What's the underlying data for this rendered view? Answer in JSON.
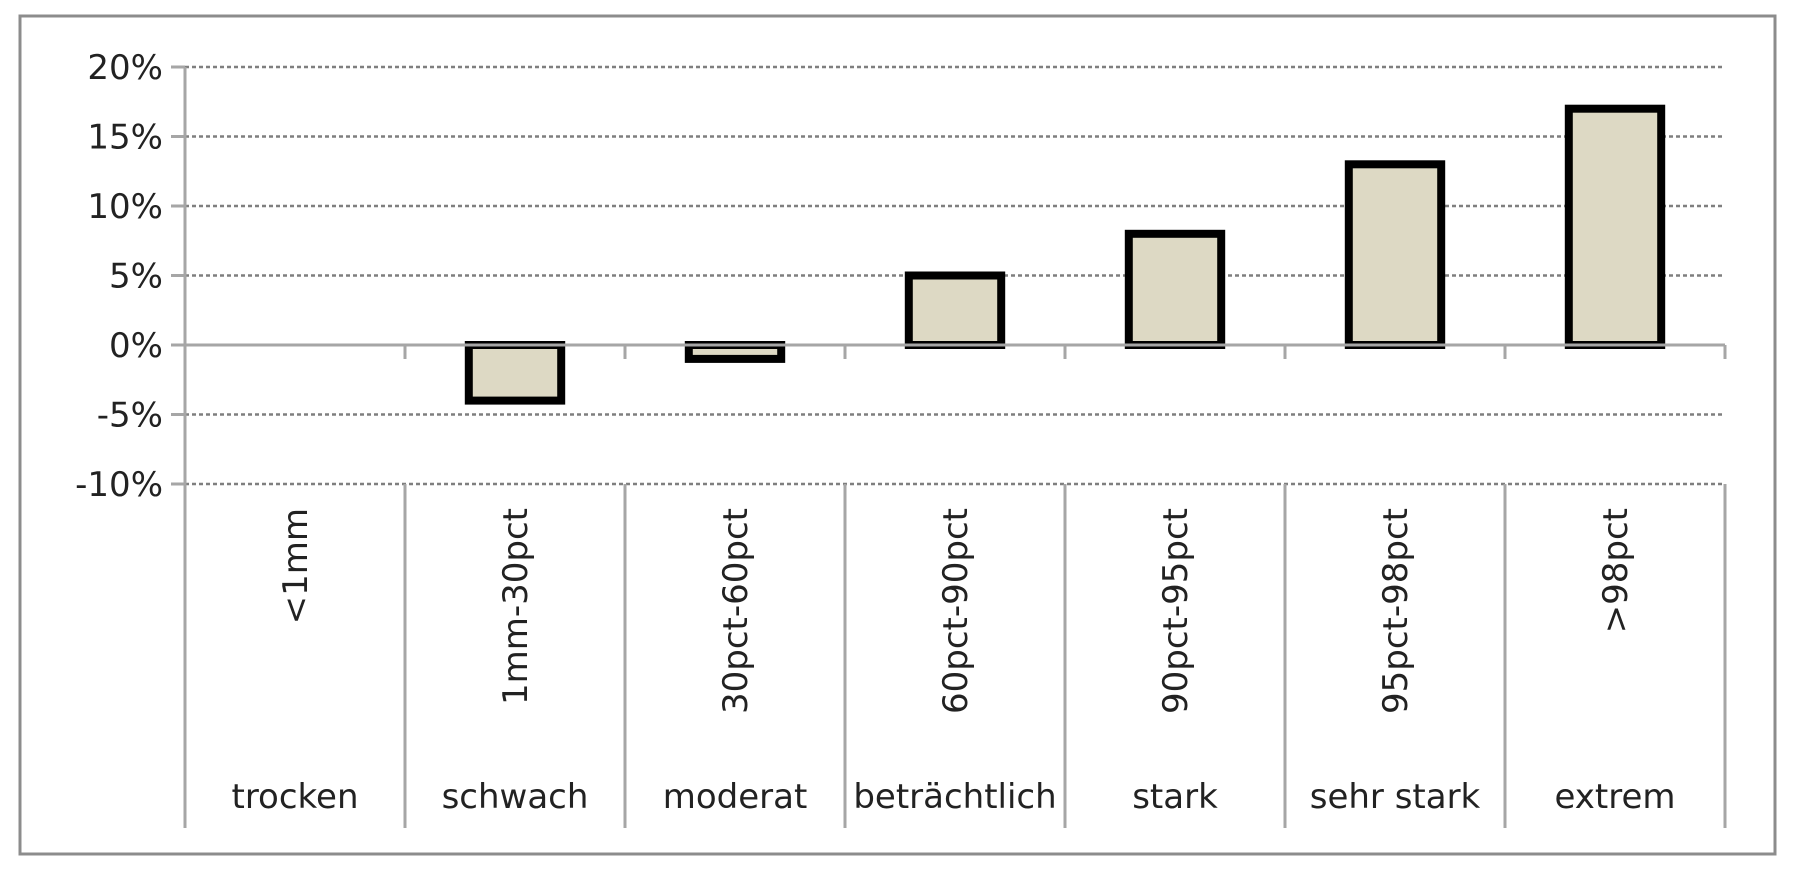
{
  "chart_data": {
    "type": "bar",
    "title": "",
    "xlabel": "",
    "ylabel": "",
    "categories": [
      "<1mm",
      "1mm-30pct",
      "30pct-60pct",
      "60pct-90pct",
      "90pct-95pct",
      "95pct-98pct",
      ">98pct"
    ],
    "groups": [
      "trocken",
      "schwach",
      "moderat",
      "beträchtlich",
      "stark",
      "sehr stark",
      "extrem"
    ],
    "values": [
      0,
      -0.04,
      -0.01,
      0.05,
      0.08,
      0.13,
      0.17
    ],
    "ylim": [
      -0.1,
      0.2
    ],
    "yticks": [
      0.2,
      0.15,
      0.1,
      0.05,
      0.0,
      -0.05,
      -0.1
    ],
    "ytick_labels": [
      "20%",
      "15%",
      "10%",
      "5%",
      "0%",
      "-5%",
      "-10%"
    ],
    "grid": true,
    "legend": "none",
    "colors": {
      "bar_fill": "#ddd9c4",
      "bar_stroke": "#000000",
      "grid": "#7f7f7f",
      "axis": "#a6a6a6",
      "border": "#8c8c8c"
    }
  }
}
